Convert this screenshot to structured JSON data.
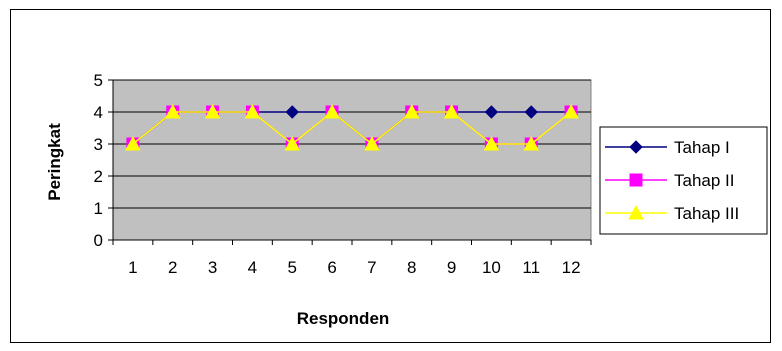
{
  "chart_data": {
    "type": "line",
    "title": "",
    "xlabel": "Responden",
    "ylabel": "Peringkat",
    "categories": [
      "1",
      "2",
      "3",
      "4",
      "5",
      "6",
      "7",
      "8",
      "9",
      "10",
      "11",
      "12"
    ],
    "ylim": [
      0,
      5
    ],
    "yticks": [
      "0",
      "1",
      "2",
      "3",
      "4",
      "5"
    ],
    "grid": true,
    "legend_position": "right",
    "plot_background": "#c0c0c0",
    "series": [
      {
        "name": "Tahap I",
        "color": "#000080",
        "marker": "diamond",
        "values": [
          3,
          4,
          4,
          4,
          4,
          4,
          3,
          4,
          4,
          4,
          4,
          4
        ]
      },
      {
        "name": "Tahap II",
        "color": "#ff00ff",
        "marker": "square",
        "values": [
          3,
          4,
          4,
          4,
          3,
          4,
          3,
          4,
          4,
          3,
          3,
          4
        ]
      },
      {
        "name": "Tahap III",
        "color": "#ffff00",
        "marker": "triangle",
        "values": [
          3,
          4,
          4,
          4,
          3,
          4,
          3,
          4,
          4,
          3,
          3,
          4
        ]
      }
    ]
  }
}
